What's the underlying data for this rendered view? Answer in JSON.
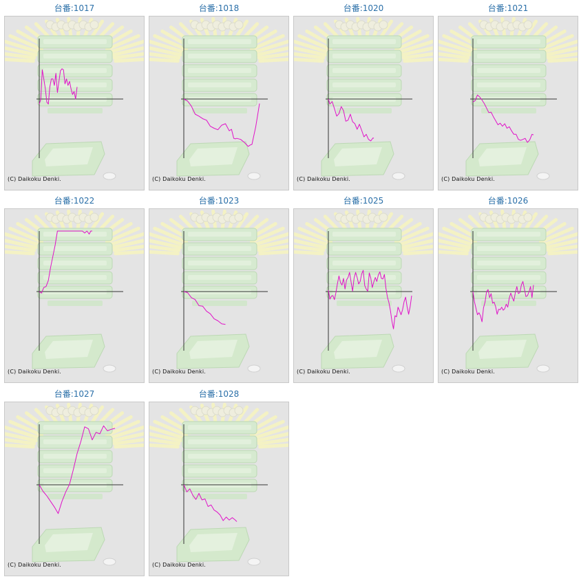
{
  "label_prefix": "台番:",
  "copyright": "(C) Daikoku Denki.",
  "line_color": "#e010c8",
  "axis_color": "#333333",
  "chart_data": [
    {
      "type": "line",
      "title": "台番:1017",
      "x": [
        0,
        2,
        4,
        6,
        8,
        10,
        12,
        14,
        16,
        18,
        20,
        22,
        24,
        26,
        28,
        30,
        32,
        34,
        36,
        38,
        40,
        42,
        44,
        46,
        48,
        50
      ],
      "y": [
        -10,
        -1,
        58,
        40,
        21,
        -6,
        -10,
        24,
        40,
        40,
        27,
        51,
        13,
        35,
        56,
        60,
        58,
        30,
        40,
        27,
        35,
        20,
        9,
        15,
        0,
        24
      ]
    },
    {
      "type": "line",
      "title": "台番:1018",
      "x": [
        0,
        5,
        10,
        15,
        20,
        25,
        30,
        35,
        40,
        45,
        50,
        55,
        60,
        63,
        66,
        68,
        70,
        75,
        80,
        85,
        88,
        90,
        95,
        100
      ],
      "y": [
        0,
        -4,
        -14,
        -30,
        -34,
        -39,
        -42,
        -54,
        -58,
        -61,
        -52,
        -49,
        -63,
        -60,
        -78,
        -79,
        -78,
        -80,
        -86,
        -94,
        -91,
        -90,
        -55,
        -9
      ]
    },
    {
      "type": "line",
      "title": "台番:1020",
      "x": [
        0,
        2,
        5,
        8,
        11,
        14,
        17,
        20,
        23,
        26,
        29,
        32,
        35,
        38,
        41,
        44,
        47,
        50,
        53,
        56,
        59,
        60
      ],
      "y": [
        0,
        -10,
        -5,
        -19,
        -34,
        -29,
        -15,
        -23,
        -44,
        -42,
        -30,
        -45,
        -49,
        -60,
        -50,
        -62,
        -75,
        -70,
        -80,
        -83,
        -77,
        -78
      ]
    },
    {
      "type": "line",
      "title": "台番:1021",
      "x": [
        0,
        3,
        6,
        9,
        12,
        15,
        18,
        21,
        24,
        27,
        30,
        33,
        36,
        39,
        42,
        45,
        48,
        51,
        54,
        57,
        60,
        63,
        66,
        69,
        72,
        75,
        78,
        80
      ],
      "y": [
        -6,
        -3,
        8,
        4,
        -2,
        -9,
        -18,
        -27,
        -26,
        -35,
        -43,
        -51,
        -48,
        -54,
        -49,
        -58,
        -55,
        -63,
        -70,
        -70,
        -80,
        -82,
        -80,
        -78,
        -86,
        -81,
        -70,
        -71
      ]
    },
    {
      "type": "line",
      "title": "台番:1022",
      "x": [
        0,
        3,
        6,
        9,
        12,
        15,
        18,
        21,
        24,
        27,
        30,
        33,
        36,
        39,
        42,
        45,
        48,
        51,
        54,
        57,
        60,
        63,
        66,
        68,
        70
      ],
      "y": [
        0,
        -3,
        8,
        10,
        22,
        48,
        70,
        92,
        120,
        120,
        120,
        120,
        120,
        120,
        120,
        120,
        120,
        120,
        120,
        120,
        116,
        120,
        114,
        120,
        120
      ]
    },
    {
      "type": "line",
      "title": "台番:1023",
      "x": [
        0,
        5,
        10,
        15,
        20,
        25,
        30,
        35,
        40,
        45,
        50,
        55
      ],
      "y": [
        0,
        -2,
        -12,
        -16,
        -28,
        -29,
        -39,
        -44,
        -54,
        -58,
        -64,
        -65
      ]
    },
    {
      "type": "line",
      "title": "台番:1025",
      "x": [
        0,
        2,
        4,
        6,
        8,
        10,
        12,
        14,
        16,
        18,
        20,
        22,
        24,
        26,
        28,
        30,
        32,
        34,
        36,
        38,
        40,
        42,
        44,
        46,
        48,
        50,
        52,
        54,
        56,
        58,
        60,
        62,
        64,
        66,
        68,
        70,
        72,
        74,
        76,
        78,
        80,
        82,
        84,
        86,
        88,
        90,
        92,
        94,
        96,
        98,
        100,
        102,
        104,
        106,
        108,
        110
      ],
      "y": [
        3,
        -15,
        -9,
        -8,
        -16,
        -2,
        16,
        31,
        18,
        13,
        26,
        5,
        23,
        28,
        38,
        19,
        1,
        27,
        38,
        28,
        15,
        20,
        35,
        42,
        12,
        5,
        1,
        37,
        27,
        8,
        19,
        28,
        20,
        33,
        39,
        26,
        25,
        34,
        7,
        -11,
        -22,
        -38,
        -59,
        -74,
        -48,
        -50,
        -31,
        -38,
        -46,
        -36,
        -20,
        -11,
        -30,
        -45,
        -30,
        -8
      ]
    },
    {
      "type": "line",
      "title": "台番:1026",
      "x": [
        0,
        2,
        4,
        6,
        8,
        10,
        12,
        14,
        16,
        18,
        20,
        22,
        24,
        26,
        28,
        30,
        32,
        34,
        36,
        38,
        40,
        42,
        44,
        46,
        48,
        50,
        52,
        54,
        56,
        58,
        60,
        62,
        64,
        66,
        68,
        70,
        72,
        74,
        76,
        78,
        80
      ],
      "y": [
        0,
        -20,
        -33,
        -46,
        -42,
        -48,
        -60,
        -32,
        -21,
        0,
        4,
        -12,
        -4,
        -23,
        -21,
        -30,
        -45,
        -35,
        -36,
        -31,
        -37,
        -34,
        -25,
        -31,
        -13,
        -3,
        -12,
        -19,
        -2,
        10,
        -4,
        -2,
        13,
        20,
        5,
        -10,
        -8,
        -1,
        10,
        -12,
        13
      ]
    },
    {
      "type": "line",
      "title": "台番:1027",
      "x": [
        0,
        5,
        10,
        15,
        20,
        25,
        30,
        35,
        40,
        45,
        50,
        55,
        60,
        65,
        70,
        75,
        80,
        85,
        90,
        95,
        100
      ],
      "y": [
        0,
        -13,
        -22,
        -33,
        -44,
        -57,
        -33,
        -14,
        1,
        30,
        62,
        86,
        115,
        111,
        89,
        104,
        101,
        117,
        107,
        110,
        112
      ]
    },
    {
      "type": "line",
      "title": "台番:1028",
      "x": [
        0,
        4,
        8,
        12,
        16,
        20,
        24,
        28,
        32,
        36,
        40,
        44,
        48,
        52,
        56,
        60,
        64,
        68,
        70
      ],
      "y": [
        0,
        -14,
        -8,
        -21,
        -29,
        -17,
        -30,
        -28,
        -43,
        -40,
        -50,
        -54,
        -60,
        -71,
        -64,
        -70,
        -65,
        -70,
        -73
      ]
    }
  ]
}
